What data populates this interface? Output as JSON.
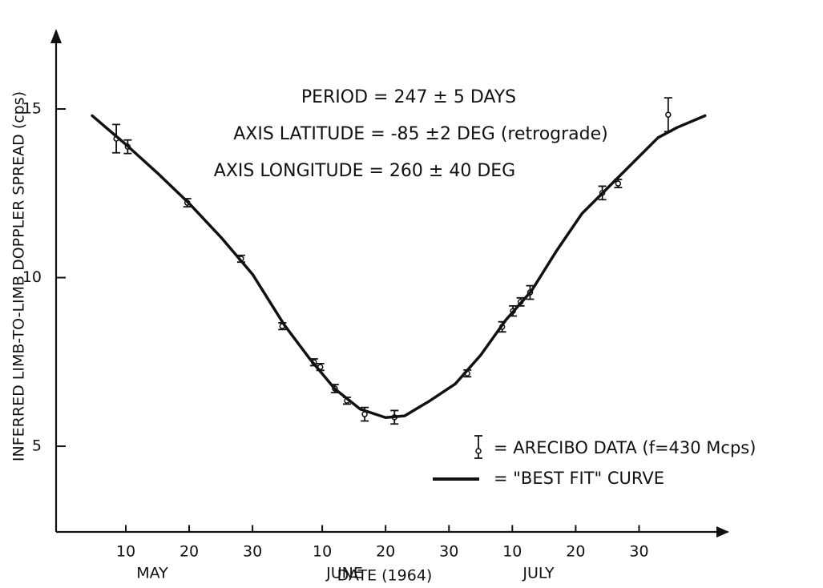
{
  "chart_data": {
    "type": "scatter",
    "ylabel": "INFERRED LIMB-TO-LIMB DOPPLER SPREAD (cps)",
    "xlabel": "DATE (1964)",
    "month_labels": [
      "MAY",
      "JUNE",
      "JULY"
    ],
    "annotations": [
      "PERIOD = 247 ± 5 DAYS",
      "AXIS LATITUDE = -85 ±2 DEG (retrograde)",
      "AXIS LONGITUDE = 260 ± 40 DEG"
    ],
    "xlim": [
      -2,
      103.6
    ],
    "ylim": [
      2.45,
      17.3
    ],
    "xticks": [
      {
        "value": 9,
        "label": "10"
      },
      {
        "value": 19,
        "label": "20"
      },
      {
        "value": 29,
        "label": "30"
      },
      {
        "value": 40,
        "label": "10"
      },
      {
        "value": 50,
        "label": "20"
      },
      {
        "value": 60,
        "label": "30"
      },
      {
        "value": 70,
        "label": "10"
      },
      {
        "value": 80,
        "label": "20"
      },
      {
        "value": 90,
        "label": "30"
      }
    ],
    "yticks": [
      5,
      10,
      15
    ],
    "series": [
      {
        "name": "= ARECIBO DATA (f=430 Mcps)",
        "type": "errorbar",
        "color": "#111111",
        "x": [
          7.5,
          9.3,
          18.7,
          27.2,
          33.7,
          38.7,
          39.7,
          42.0,
          43.9,
          46.7,
          51.4,
          62.9,
          68.4,
          70.1,
          71.3,
          72.8,
          84.2,
          86.7,
          94.6
        ],
        "values": [
          14.12,
          13.88,
          12.22,
          10.56,
          8.56,
          7.49,
          7.35,
          6.71,
          6.35,
          5.95,
          5.86,
          7.16,
          8.54,
          9.01,
          9.28,
          9.56,
          12.51,
          12.79,
          14.83
        ],
        "errors": [
          0.42,
          0.2,
          0.12,
          0.1,
          0.1,
          0.1,
          0.1,
          0.12,
          0.1,
          0.2,
          0.2,
          0.1,
          0.15,
          0.15,
          0.12,
          0.2,
          0.2,
          0.12,
          0.5
        ]
      },
      {
        "name": "= \"BEST FIT\" CURVE",
        "type": "line",
        "color": "#111111",
        "x": [
          3.7,
          9,
          14,
          19,
          24,
          29,
          34,
          38,
          42,
          46,
          50,
          53,
          57,
          61,
          65,
          69,
          73,
          77,
          81,
          85,
          89,
          93,
          96,
          100.4
        ],
        "values": [
          14.8,
          13.95,
          13.1,
          12.2,
          11.2,
          10.1,
          8.6,
          7.6,
          6.7,
          6.1,
          5.85,
          5.9,
          6.35,
          6.85,
          7.7,
          8.75,
          9.6,
          10.8,
          11.9,
          12.65,
          13.4,
          14.15,
          14.45,
          14.8
        ]
      }
    ]
  }
}
